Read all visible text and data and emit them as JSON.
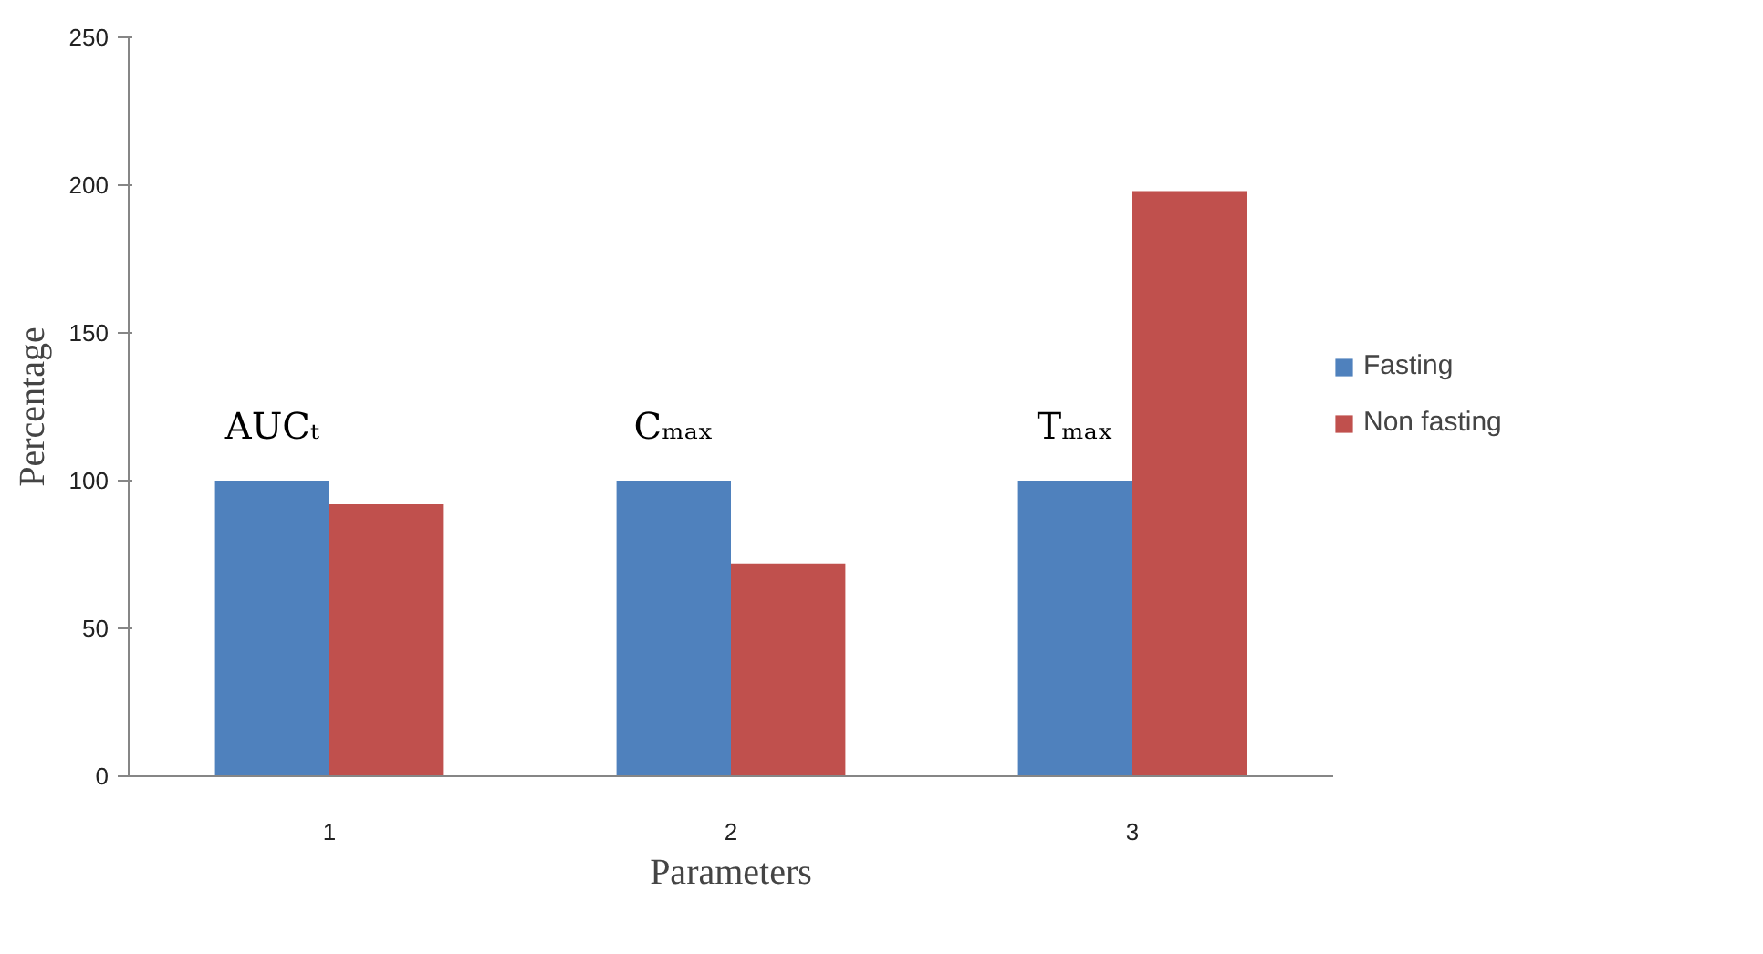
{
  "chart_data": {
    "type": "bar",
    "xlabel": "Parameters",
    "ylabel": "Percentage",
    "categories": [
      "1",
      "2",
      "3"
    ],
    "series": [
      {
        "name": "Fasting",
        "color": "#4f81bd",
        "values": [
          100,
          100,
          100
        ]
      },
      {
        "name": "Non fasting",
        "color": "#c0504d",
        "values": [
          92,
          72,
          198
        ]
      }
    ],
    "ylim": [
      0,
      250
    ],
    "yticks": [
      0,
      50,
      100,
      150,
      200,
      250
    ],
    "grid": false,
    "legend": "right",
    "annotations": [
      "AUCₜ",
      "Cₘₐₓ",
      "Tₘₐₓ"
    ]
  }
}
